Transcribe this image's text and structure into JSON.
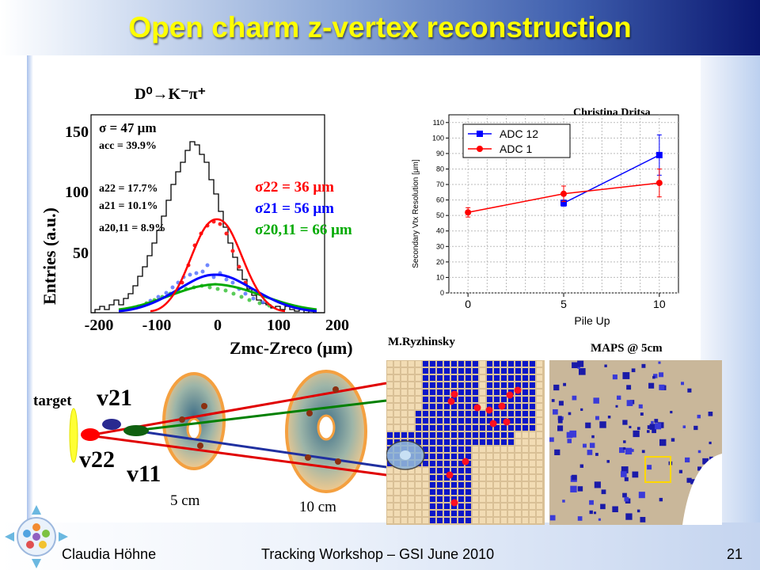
{
  "slide": {
    "title": "Open charm z-vertex reconstruction",
    "footer_author": "Claudia Höhne",
    "footer_event": "Tracking Workshop – GSI June 2010",
    "page_number": "21"
  },
  "left_histogram": {
    "decay": "D⁰→K⁻π⁺",
    "ylabel": "Entries (a.u.)",
    "xlabel": "Zmc-Zreco (μm)",
    "annotations": {
      "sigma": "σ = 47 μm",
      "acc": "acc = 39.9%",
      "a22": "a22 = 17.7%",
      "a21": "a21 = 10.1%",
      "a2011": "a20,11 = 8.9%",
      "sigma22": "σ22 = 36 μm",
      "sigma21": "σ21 = 56 μm",
      "sigma2011": "σ20,11 = 66 μm"
    }
  },
  "chart_data": {
    "type": "line",
    "title": "",
    "credit": "Christina Dritsa",
    "xlabel": "Pile Up",
    "ylabel": "Secondary Vtx Resolution [μm]",
    "xlim": [
      -1,
      11
    ],
    "ylim": [
      0,
      115
    ],
    "x_ticks": [
      0,
      5,
      10
    ],
    "y_ticks": [
      0,
      10,
      20,
      30,
      40,
      50,
      60,
      70,
      80,
      90,
      100,
      110
    ],
    "grid": true,
    "legend": "top-left",
    "series": [
      {
        "name": "ADC 12",
        "color": "#0000ff",
        "marker": "square",
        "x": [
          5,
          10
        ],
        "y": [
          58,
          89
        ],
        "err": [
          2,
          13
        ]
      },
      {
        "name": "ADC 1",
        "color": "#ff0000",
        "marker": "circle",
        "x": [
          0,
          5,
          10
        ],
        "y": [
          52,
          64,
          71
        ],
        "err": [
          3,
          5,
          9
        ]
      }
    ]
  },
  "detector": {
    "target": "target",
    "v21": "v21",
    "v22": "v22",
    "v11": "v11",
    "station1": "5 cm",
    "station2": "10 cm"
  },
  "pixels": {
    "credit": "M.Ryzhinsky",
    "maps_label": "MAPS @ 5cm"
  },
  "colors": {
    "title": "#ffff00",
    "hist_total": "#000000",
    "fit_22": "#ff0000",
    "fit_21": "#0000ff",
    "fit_2011": "#00aa00"
  }
}
